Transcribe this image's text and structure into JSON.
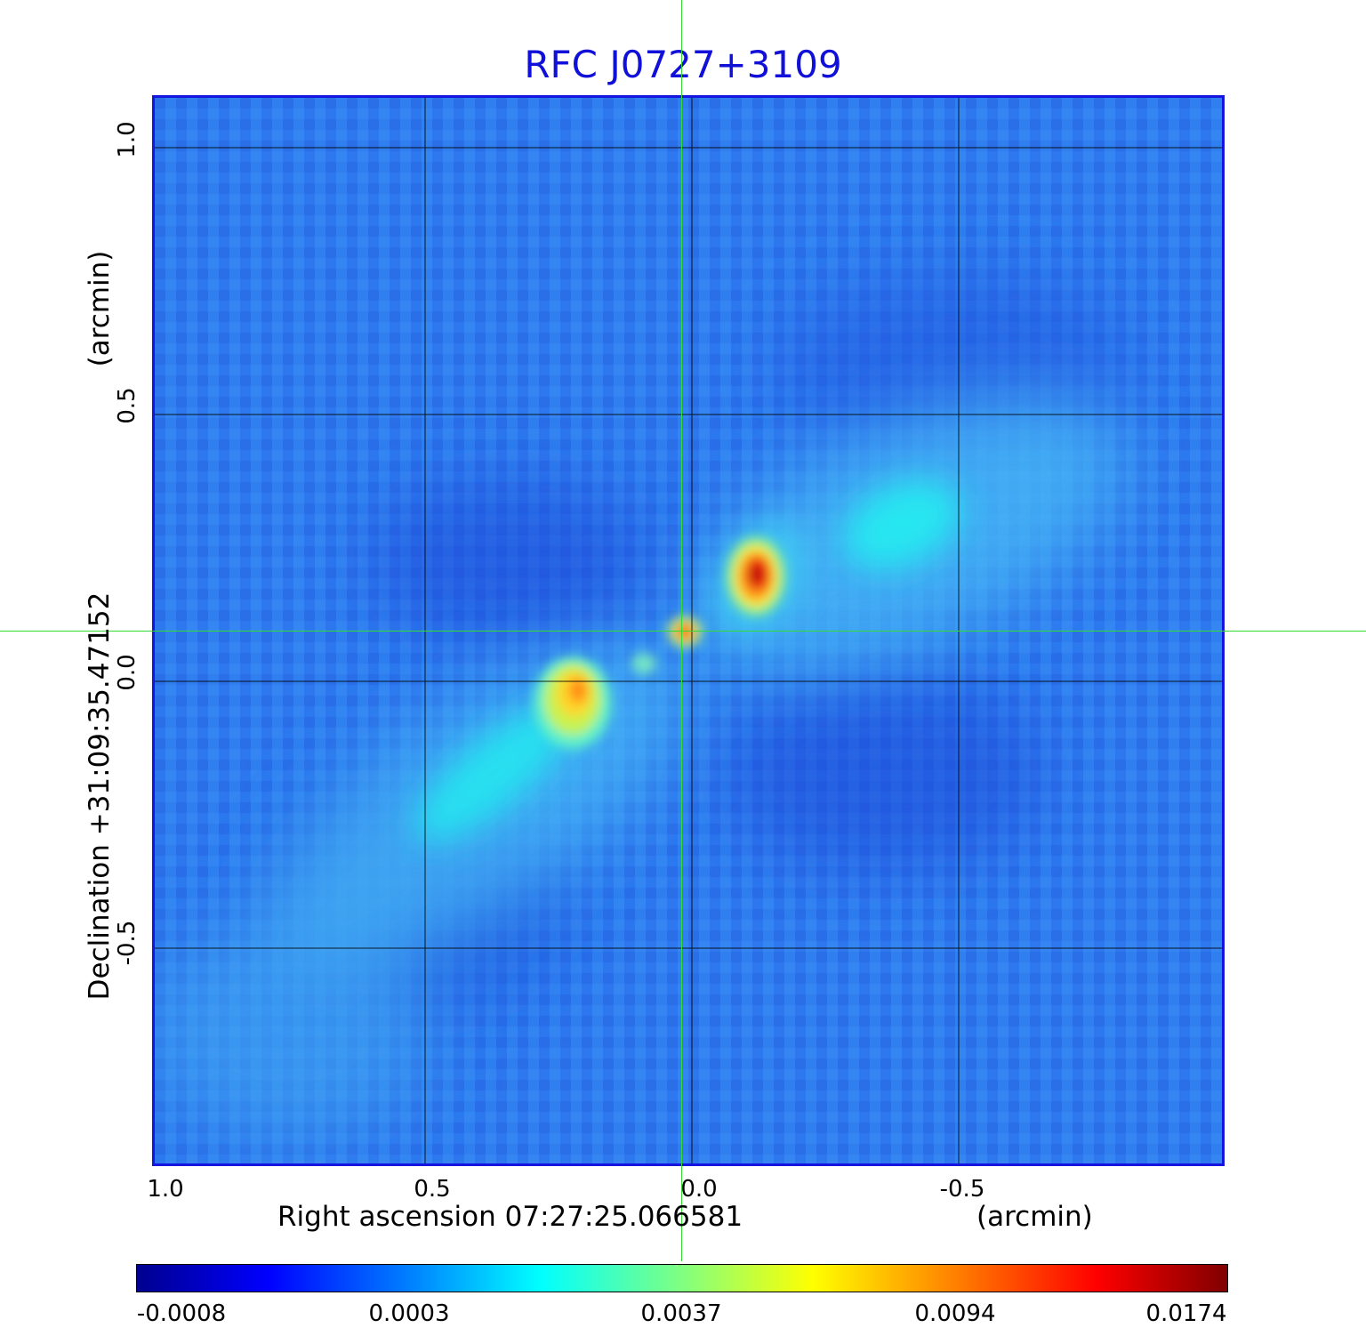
{
  "title": "RFC J0727+3109",
  "x_axis": {
    "label": "Right ascension  07:27:25.066581",
    "unit": "(arcmin)",
    "ticks": [
      "1.0",
      "0.5",
      "0.0",
      "-0.5"
    ]
  },
  "y_axis": {
    "label": "Declination  +31:09:35.47152",
    "unit": "(arcmin)",
    "ticks": [
      "1.0",
      "0.5",
      "0.0",
      "-0.5"
    ]
  },
  "colorbar": {
    "ticks": [
      "-0.0008",
      "0.0003",
      "0.0037",
      "0.0094",
      "0.0174"
    ],
    "colormap": "jet"
  },
  "colors": {
    "title": "#1010d8",
    "frame": "#1515e0",
    "crosshair": "#33dd33"
  }
}
